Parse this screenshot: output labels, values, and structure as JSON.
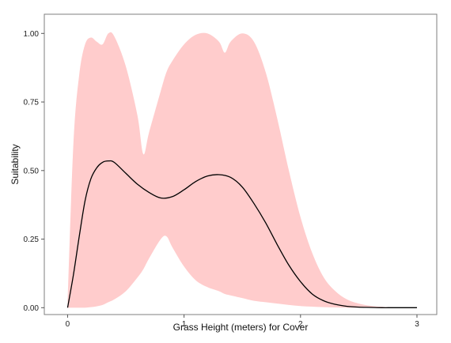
{
  "chart_data": {
    "type": "area",
    "title": "",
    "xlabel": "Grass Height (meters) for Cover",
    "ylabel": "Suitability",
    "xlim": [
      -0.2,
      3.17
    ],
    "ylim": [
      -0.025,
      1.07
    ],
    "x_ticks": [
      0,
      1,
      2,
      3
    ],
    "x_tick_labels": [
      "0",
      "1",
      "2",
      "3"
    ],
    "y_ticks": [
      0,
      0.25,
      0.5,
      0.75,
      1
    ],
    "y_tick_labels": [
      "0.00",
      "0.25",
      "0.50",
      "0.75",
      "1.00"
    ],
    "grid": false,
    "legend": "none",
    "colors": {
      "band": "#ffcccc",
      "line": "#000000",
      "frame": "#7f7f7f"
    },
    "series": [
      {
        "kind": "line",
        "x": [
          0,
          0.05,
          0.1,
          0.15,
          0.2,
          0.25,
          0.3,
          0.35,
          0.4,
          0.5,
          0.6,
          0.7,
          0.8,
          0.9,
          1.0,
          1.1,
          1.2,
          1.3,
          1.4,
          1.5,
          1.6,
          1.7,
          1.8,
          1.9,
          2.0,
          2.1,
          2.2,
          2.3,
          2.4,
          2.5,
          2.6,
          2.7,
          2.8,
          3.0
        ],
        "y": [
          0.0,
          0.12,
          0.26,
          0.39,
          0.47,
          0.51,
          0.53,
          0.535,
          0.53,
          0.49,
          0.45,
          0.42,
          0.4,
          0.405,
          0.43,
          0.46,
          0.48,
          0.485,
          0.475,
          0.44,
          0.38,
          0.31,
          0.23,
          0.155,
          0.095,
          0.05,
          0.025,
          0.012,
          0.005,
          0.002,
          0.001,
          0.0,
          0.0,
          0.0
        ]
      },
      {
        "kind": "band",
        "x": [
          0,
          0.05,
          0.1,
          0.15,
          0.2,
          0.25,
          0.3,
          0.35,
          0.4,
          0.5,
          0.6,
          0.65,
          0.7,
          0.8,
          0.85,
          0.9,
          1.0,
          1.1,
          1.2,
          1.3,
          1.35,
          1.4,
          1.5,
          1.6,
          1.7,
          1.8,
          1.9,
          2.0,
          2.1,
          2.2,
          2.3,
          2.4,
          2.5,
          2.6,
          2.7,
          2.8,
          3.0
        ],
        "upper": [
          0.02,
          0.6,
          0.85,
          0.96,
          0.985,
          0.97,
          0.96,
          1.0,
          0.99,
          0.88,
          0.7,
          0.56,
          0.64,
          0.79,
          0.86,
          0.9,
          0.96,
          0.995,
          1.0,
          0.97,
          0.93,
          0.97,
          1.0,
          0.97,
          0.86,
          0.69,
          0.5,
          0.33,
          0.2,
          0.11,
          0.06,
          0.03,
          0.015,
          0.007,
          0.003,
          0.001,
          0.0
        ],
        "lower": [
          0.0,
          0.0,
          0.0,
          0.0,
          0.002,
          0.005,
          0.01,
          0.02,
          0.03,
          0.06,
          0.11,
          0.14,
          0.18,
          0.25,
          0.26,
          0.22,
          0.15,
          0.1,
          0.075,
          0.06,
          0.05,
          0.045,
          0.035,
          0.025,
          0.02,
          0.015,
          0.01,
          0.006,
          0.004,
          0.002,
          0.001,
          0.0,
          0.0,
          0.0,
          0.0,
          0.0,
          0.0
        ]
      }
    ]
  }
}
